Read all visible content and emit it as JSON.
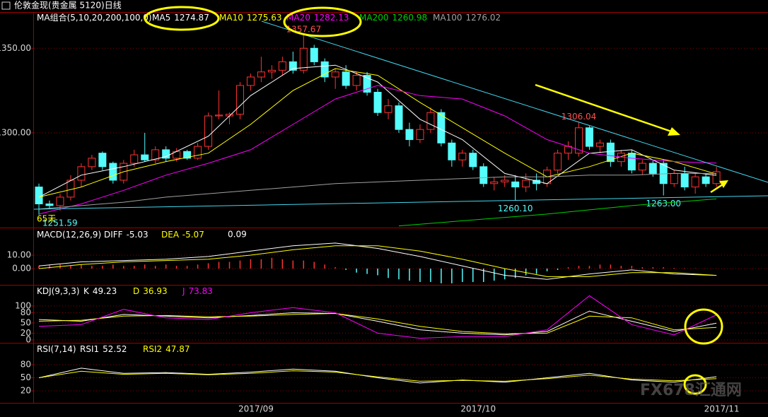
{
  "title": "伦敦金现(贵金属 5120)日线",
  "watermark": "FX678汇通网",
  "chart_data": [
    {
      "type": "candlestick",
      "legend_title": "MA组合(5,10,20,200,100,0)",
      "note": "65天",
      "xlim": [
        -0.47,
        68.87
      ],
      "ylim": [
        1244,
        1371
      ],
      "yticks": [
        {
          "value": 1350,
          "label": "1350.00"
        },
        {
          "value": 1300,
          "label": "1300.00"
        }
      ],
      "grid": true,
      "up_color": "#ff3232",
      "down_color": "#54fcfc",
      "candles": [
        [
          1268,
          1270,
          1251.59,
          1258
        ],
        [
          1258,
          1260,
          1255,
          1257
        ],
        [
          1257,
          1264,
          1254,
          1262
        ],
        [
          1262,
          1275,
          1260,
          1272
        ],
        [
          1272,
          1282,
          1268,
          1280
        ],
        [
          1280,
          1287,
          1278,
          1285
        ],
        [
          1288,
          1289,
          1278,
          1280
        ],
        [
          1282,
          1283,
          1270,
          1272
        ],
        [
          1272,
          1284,
          1270,
          1282
        ],
        [
          1282,
          1290,
          1280,
          1287
        ],
        [
          1287,
          1300,
          1283,
          1284
        ],
        [
          1284,
          1292,
          1282,
          1290
        ],
        [
          1290,
          1292,
          1283,
          1285
        ],
        [
          1285,
          1291,
          1283,
          1289
        ],
        [
          1289,
          1290,
          1284,
          1285
        ],
        [
          1285,
          1294,
          1284,
          1292
        ],
        [
          1292,
          1312,
          1290,
          1310
        ],
        [
          1310,
          1325,
          1308,
          1310.5
        ],
        [
          1310,
          1312,
          1305,
          1311
        ],
        [
          1311,
          1330,
          1308,
          1328
        ],
        [
          1328,
          1335,
          1325,
          1333
        ],
        [
          1333,
          1345,
          1330,
          1336
        ],
        [
          1336,
          1340,
          1332,
          1337
        ],
        [
          1337,
          1345,
          1334,
          1342
        ],
        [
          1342,
          1348,
          1335,
          1337
        ],
        [
          1337,
          1357.67,
          1335,
          1350
        ],
        [
          1350,
          1352,
          1340,
          1342
        ],
        [
          1342,
          1344,
          1330,
          1333
        ],
        [
          1333,
          1338,
          1326,
          1336
        ],
        [
          1336,
          1340,
          1326,
          1328
        ],
        [
          1328,
          1336,
          1325,
          1334
        ],
        [
          1334,
          1336,
          1322,
          1324
        ],
        [
          1324,
          1326,
          1310,
          1312
        ],
        [
          1312,
          1320,
          1308,
          1316
        ],
        [
          1316,
          1318,
          1300,
          1302
        ],
        [
          1302,
          1306,
          1292,
          1296
        ],
        [
          1296,
          1305,
          1294,
          1302
        ],
        [
          1302,
          1315,
          1300,
          1312
        ],
        [
          1312,
          1314,
          1292,
          1294
        ],
        [
          1294,
          1296,
          1280,
          1284
        ],
        [
          1284,
          1290,
          1280,
          1288
        ],
        [
          1288,
          1290,
          1278,
          1280
        ],
        [
          1280,
          1282,
          1268,
          1270
        ],
        [
          1270,
          1274,
          1266,
          1271
        ],
        [
          1271,
          1275,
          1268,
          1272
        ],
        [
          1271,
          1275,
          1260.1,
          1268
        ],
        [
          1268,
          1276,
          1265,
          1272
        ],
        [
          1272,
          1276,
          1266,
          1270
        ],
        [
          1270,
          1280,
          1268,
          1278
        ],
        [
          1278,
          1290,
          1276,
          1288
        ],
        [
          1288,
          1295,
          1284,
          1292
        ],
        [
          1288,
          1306.04,
          1286,
          1303
        ],
        [
          1303,
          1304,
          1290,
          1292
        ],
        [
          1292,
          1296,
          1288,
          1294
        ],
        [
          1294,
          1296,
          1280,
          1283
        ],
        [
          1283,
          1290,
          1280,
          1288
        ],
        [
          1288,
          1290,
          1276,
          1278
        ],
        [
          1278,
          1284,
          1275,
          1282
        ],
        [
          1282,
          1284,
          1274,
          1276
        ],
        [
          1282,
          1284,
          1263,
          1270
        ],
        [
          1270,
          1278,
          1268,
          1276
        ],
        [
          1276,
          1280,
          1266,
          1268
        ],
        [
          1268,
          1276,
          1264,
          1274
        ],
        [
          1274,
          1276,
          1268,
          1270
        ],
        [
          1270,
          1280,
          1268,
          1277
        ]
      ],
      "annotations": [
        {
          "x": 25,
          "value": 1357.67,
          "label": "1357.67",
          "color": "#ff5050"
        },
        {
          "x": 51,
          "value": 1306.04,
          "label": "1306.04",
          "color": "#ff5050"
        },
        {
          "x": 45,
          "value": 1260.1,
          "label": "1260.10",
          "color": "#54fcfc"
        },
        {
          "x": 59,
          "value": 1263,
          "label": "1263.00",
          "color": "#54fcfc"
        },
        {
          "x": 0,
          "value": 1251.59,
          "label": "1251.59",
          "color": "#54fcfc"
        }
      ],
      "series": [
        {
          "name": "MA5",
          "color": "#ffffff",
          "last": 1274.87,
          "x": [
            0,
            4,
            8,
            12,
            16,
            20,
            24,
            28,
            32,
            36,
            40,
            44,
            48,
            52,
            56,
            60,
            64
          ],
          "values": [
            1262,
            1275,
            1280,
            1286,
            1298,
            1322,
            1338,
            1340,
            1330,
            1308,
            1296,
            1276,
            1270,
            1288,
            1290,
            1278,
            1274.87
          ]
        },
        {
          "name": "MA10",
          "color": "#ffff00",
          "last": 1275.63,
          "x": [
            0,
            4,
            8,
            12,
            16,
            20,
            24,
            28,
            32,
            36,
            40,
            44,
            48,
            52,
            56,
            60,
            64
          ],
          "values": [
            1262,
            1268,
            1277,
            1283,
            1288,
            1305,
            1325,
            1338,
            1334,
            1318,
            1303,
            1288,
            1274,
            1280,
            1288,
            1283,
            1275.63
          ]
        },
        {
          "name": "MA20",
          "color": "#ff00ff",
          "last": 1282.13,
          "x": [
            0,
            4,
            8,
            12,
            16,
            20,
            24,
            28,
            32,
            36,
            40,
            44,
            48,
            52,
            56,
            60,
            64
          ],
          "values": [
            1252,
            1258,
            1266,
            1275,
            1282,
            1290,
            1305,
            1320,
            1328,
            1322,
            1320,
            1310,
            1296,
            1288,
            1285,
            1283,
            1282.13
          ]
        },
        {
          "name": "MA200",
          "color": "#00d000",
          "last": 1260.98,
          "x": [
            34,
            40,
            48,
            56,
            64
          ],
          "values": [
            1245,
            1248,
            1252,
            1257,
            1260.98
          ]
        },
        {
          "name": "MA100",
          "color": "#a0a0a0",
          "last": 1276.02,
          "x": [
            0,
            4,
            8,
            12,
            16,
            20,
            24,
            28,
            32,
            36,
            40,
            44,
            48,
            52,
            56,
            60,
            64
          ],
          "values": [
            1255,
            1257,
            1259,
            1262,
            1264,
            1266,
            1268,
            1270,
            1271,
            1272,
            1273,
            1274,
            1274,
            1275,
            1275,
            1276,
            1276.02
          ]
        }
      ]
    },
    {
      "type": "macd",
      "title": "MACD(12,26,9)",
      "ylim": [
        -12.1,
        30.5
      ],
      "yticks": [
        {
          "value": 10,
          "label": "10.00"
        },
        {
          "value": 0,
          "label": "0.00"
        }
      ],
      "grid": true,
      "bars": {
        "up_color": "#ff3232",
        "down_color": "#54fcfc",
        "last": 0.09,
        "values": [
          2,
          3,
          3,
          2,
          3,
          2,
          2,
          3,
          2,
          2,
          3,
          2,
          3,
          2,
          2,
          3,
          4,
          5,
          5,
          6,
          7,
          7,
          8,
          7,
          6,
          6,
          5,
          3,
          1,
          -1,
          -3,
          -4,
          -5,
          -7,
          -8,
          -9,
          -10,
          -10,
          -11,
          -11,
          -10,
          -10,
          -10,
          -9,
          -8,
          -7,
          -5,
          -4,
          -2,
          -1,
          1,
          2,
          2,
          3,
          3,
          2,
          2,
          1,
          1,
          1,
          0.5,
          0.3,
          0.2,
          0.1,
          0.09
        ]
      },
      "series": [
        {
          "name": "DIFF",
          "color": "#ffffff",
          "last": -5.03,
          "x": [
            0,
            4,
            8,
            12,
            16,
            20,
            24,
            28,
            32,
            36,
            40,
            44,
            48,
            52,
            56,
            60,
            64
          ],
          "values": [
            2,
            5,
            6,
            7,
            9,
            13,
            17,
            19,
            15,
            9,
            2,
            -5,
            -8,
            -4,
            -1,
            -4,
            -5.03
          ]
        },
        {
          "name": "DEA",
          "color": "#ffff00",
          "last": -5.07,
          "x": [
            0,
            4,
            8,
            12,
            16,
            20,
            24,
            28,
            32,
            36,
            40,
            44,
            48,
            52,
            56,
            60,
            64
          ],
          "values": [
            0,
            3,
            5,
            6,
            7,
            10,
            14,
            17,
            17,
            13,
            7,
            0,
            -6,
            -6,
            -3,
            -3,
            -5.07
          ]
        }
      ]
    },
    {
      "type": "line",
      "title": "KDJ(9,3,3)",
      "ylim": [
        -8.3,
        160
      ],
      "yticks": [
        0,
        20,
        50,
        80,
        100
      ],
      "grid": true,
      "series": [
        {
          "name": "K",
          "color": "#ffffff",
          "last": 49.23,
          "x": [
            0,
            4,
            8,
            12,
            16,
            20,
            24,
            28,
            32,
            36,
            40,
            44,
            48,
            52,
            56,
            60,
            64
          ],
          "values": [
            60,
            55,
            75,
            70,
            65,
            72,
            80,
            78,
            55,
            30,
            20,
            15,
            25,
            85,
            55,
            25,
            49.23
          ]
        },
        {
          "name": "D",
          "color": "#ffff00",
          "last": 36.93,
          "x": [
            0,
            4,
            8,
            12,
            16,
            20,
            24,
            28,
            32,
            36,
            40,
            44,
            48,
            52,
            56,
            60,
            64
          ],
          "values": [
            55,
            58,
            70,
            72,
            68,
            70,
            75,
            78,
            62,
            40,
            25,
            18,
            20,
            70,
            65,
            30,
            36.93
          ]
        },
        {
          "name": "J",
          "color": "#ff00ff",
          "last": 73.83,
          "x": [
            0,
            4,
            8,
            12,
            16,
            20,
            24,
            28,
            32,
            36,
            40,
            44,
            48,
            52,
            56,
            60,
            64
          ],
          "values": [
            40,
            45,
            90,
            65,
            60,
            80,
            95,
            80,
            20,
            5,
            10,
            10,
            30,
            130,
            45,
            15,
            73.83
          ]
        }
      ]
    },
    {
      "type": "line",
      "title": "RSI(7,14)",
      "ylim": [
        -7.5,
        128.6
      ],
      "yticks": [
        20,
        50,
        80
      ],
      "grid": true,
      "xticks": [
        {
          "value": 20.5,
          "label": "2017/09"
        },
        {
          "value": 41.5,
          "label": "2017/10"
        },
        {
          "value": 64.5,
          "label": "2017/11"
        }
      ],
      "series": [
        {
          "name": "RSI1",
          "color": "#ffffff",
          "last": 52.52,
          "x": [
            0,
            4,
            8,
            12,
            16,
            20,
            24,
            28,
            32,
            36,
            40,
            44,
            48,
            52,
            56,
            60,
            64
          ],
          "values": [
            50,
            72,
            60,
            62,
            58,
            63,
            70,
            65,
            50,
            38,
            45,
            40,
            50,
            60,
            45,
            40,
            52.52
          ]
        },
        {
          "name": "RSI2",
          "color": "#ffff00",
          "last": 47.87,
          "x": [
            0,
            4,
            8,
            12,
            16,
            20,
            24,
            28,
            32,
            36,
            40,
            44,
            48,
            52,
            56,
            60,
            64
          ],
          "values": [
            50,
            65,
            58,
            60,
            57,
            60,
            66,
            63,
            52,
            42,
            44,
            42,
            48,
            56,
            47,
            43,
            47.87
          ]
        }
      ]
    }
  ]
}
